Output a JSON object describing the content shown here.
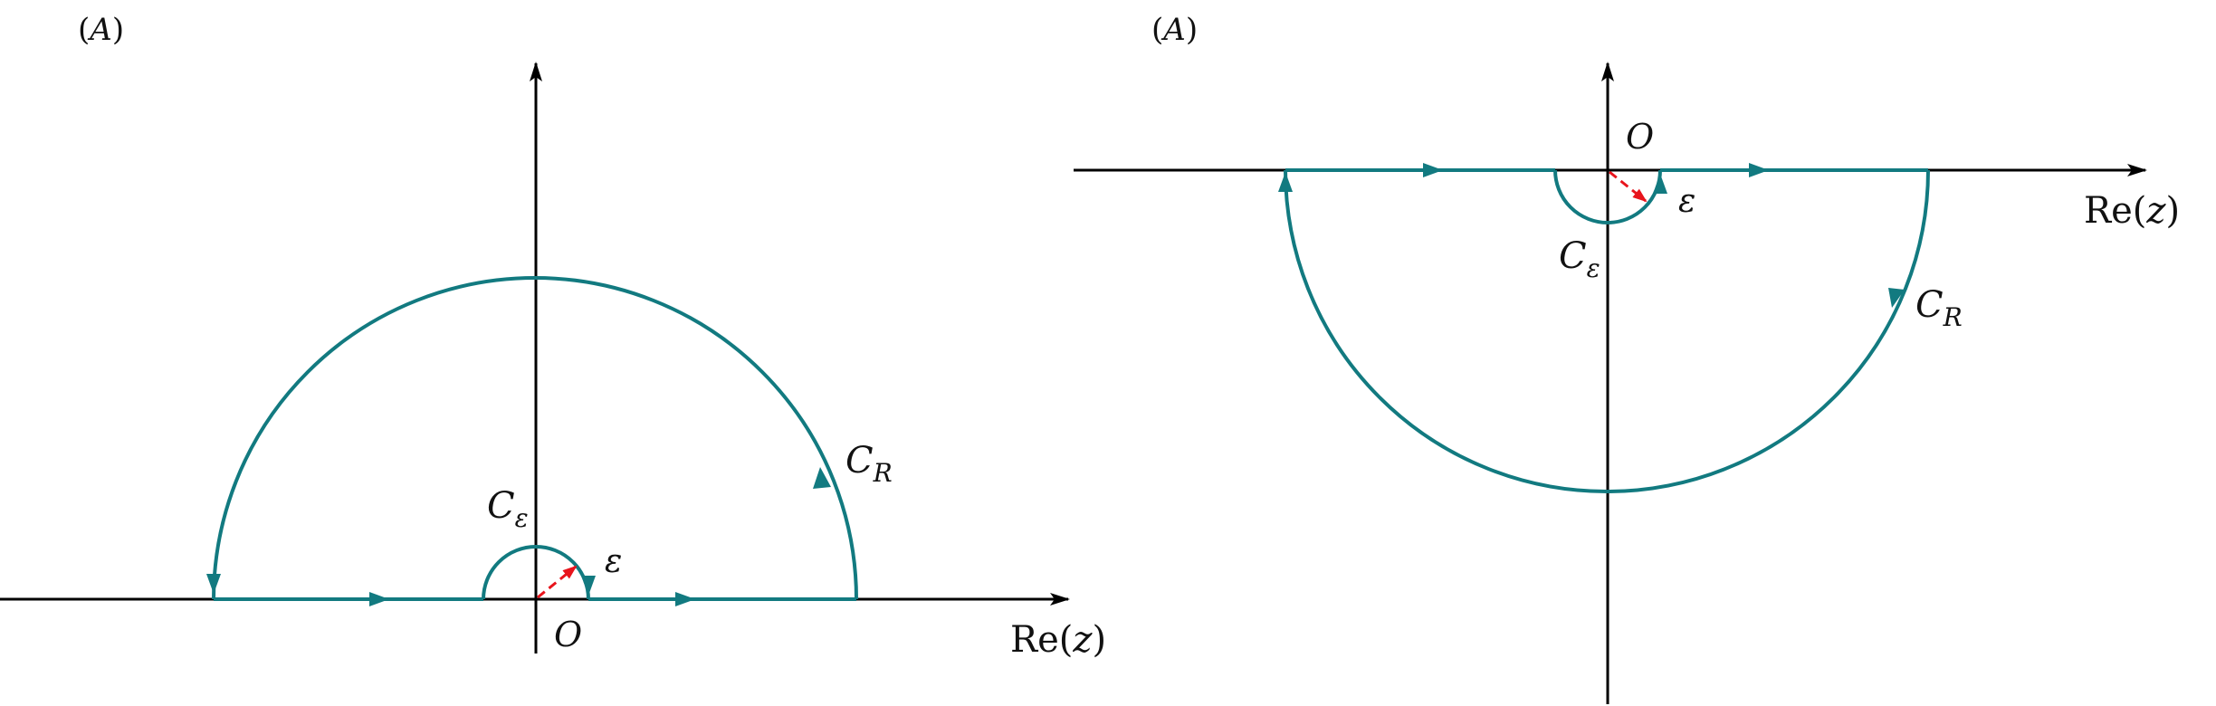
{
  "colors": {
    "axis": "#000000",
    "contour": "#127a80",
    "radius": "#e8141c",
    "text": "#111111"
  },
  "panels": [
    {
      "tag": "(A)",
      "origin_label": "O",
      "axis_label_main": "Re(",
      "axis_label_var": "z",
      "axis_label_close": ")",
      "small_arc_letter": "C",
      "small_arc_sub": "ε",
      "big_arc_letter": "C",
      "big_arc_sub": "R",
      "epsilon_label": "ε",
      "half_plane": "upper"
    },
    {
      "tag": "(A)",
      "origin_label": "O",
      "axis_label_main": "Re(",
      "axis_label_var": "z",
      "axis_label_close": ")",
      "small_arc_letter": "C",
      "small_arc_sub": "ε",
      "big_arc_letter": "C",
      "big_arc_sub": "R",
      "epsilon_label": "ε",
      "half_plane": "lower"
    }
  ]
}
